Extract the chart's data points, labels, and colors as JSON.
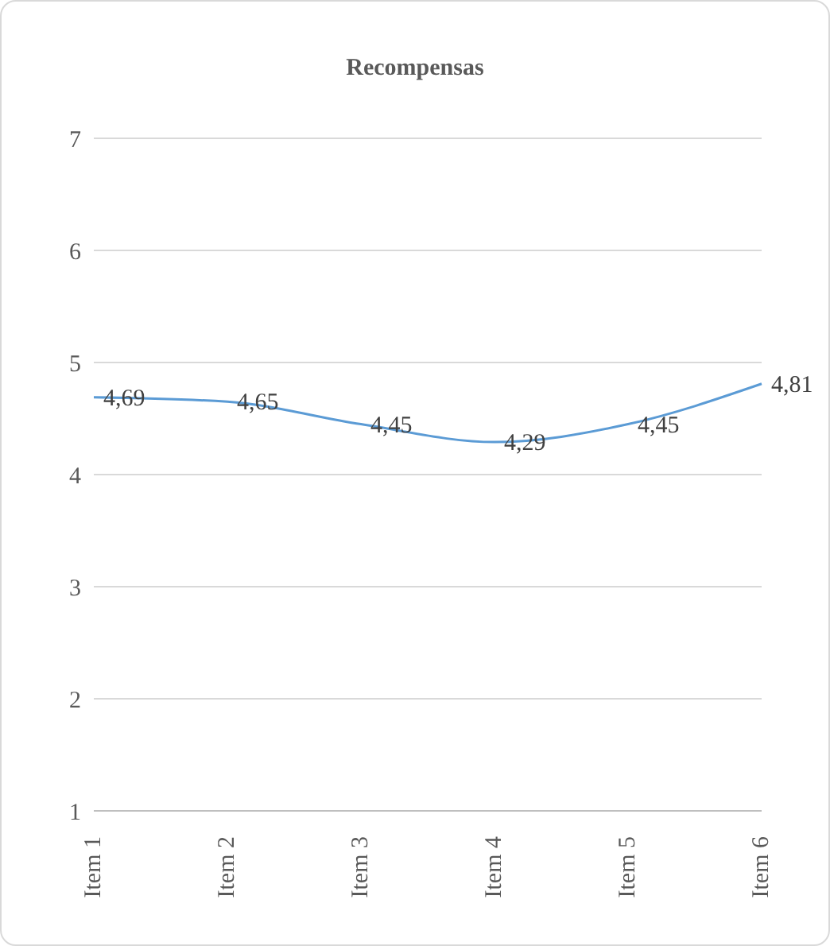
{
  "chart_data": {
    "type": "line",
    "title": "Recompensas",
    "categories": [
      "Item 1",
      "Item 2",
      "Item 3",
      "Item 4",
      "Item 5",
      "Item 6"
    ],
    "series": [
      {
        "color": "#5b9bd5",
        "values": [
          4.69,
          4.65,
          4.45,
          4.29,
          4.45,
          4.81
        ],
        "value_labels": [
          "4,69",
          "4,65",
          "4,45",
          "4,29",
          "4,45",
          "4,81"
        ]
      }
    ],
    "ylim": [
      1,
      7
    ],
    "yticks": [
      1,
      2,
      3,
      4,
      5,
      6,
      7
    ],
    "grid": "y",
    "marker": "none",
    "line_style": "solid"
  }
}
